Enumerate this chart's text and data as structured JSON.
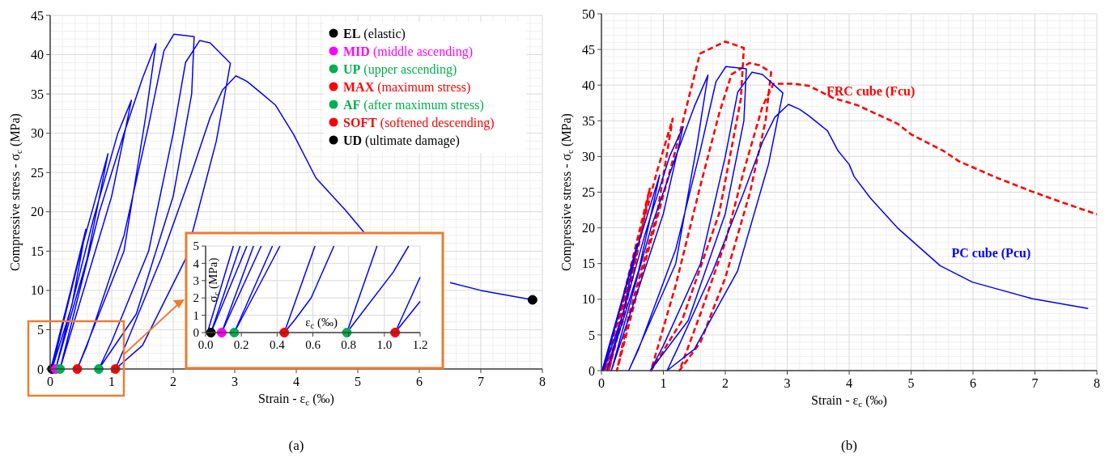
{
  "chart_data": [
    {
      "type": "line",
      "title": "(a)",
      "xlabel": "Strain - ε$_{c}$ (‰)",
      "ylabel": "Compressive stress - σ$_{c}$ (MPa)",
      "xlim": [
        0,
        8
      ],
      "ylim": [
        0,
        45
      ],
      "xticks": [
        0,
        1,
        2,
        3,
        4,
        5,
        6,
        7,
        8
      ],
      "yticks": [
        0,
        5,
        10,
        15,
        20,
        25,
        30,
        35,
        40,
        45
      ],
      "grid": true,
      "legend": "top right",
      "series": [
        {
          "color": "#0000ff",
          "line_style": "solid",
          "x": [
            0.01,
            0.35,
            0.58,
            0.35,
            0.03,
            0.5,
            0.94,
            0.6,
            0.09,
            0.7,
            1.1,
            1.32,
            1.0,
            0.16,
            0.8,
            1.2,
            1.5,
            1.72,
            1.55,
            1.2,
            0.44,
            0.6,
            1.2,
            1.6,
            1.85,
            2.01,
            2.34,
            2.3,
            2.0,
            1.4,
            0.79,
            1.0,
            1.6,
            2.0,
            2.2,
            2.43,
            2.6,
            2.93,
            2.7,
            2.2,
            1.5,
            1.06,
            1.25,
            1.8,
            2.3,
            2.6,
            2.8,
            3.02,
            3.2,
            3.4,
            3.66,
            3.96,
            4.32,
            4.8,
            5.1,
            5.5,
            6.0,
            6.5,
            7.0,
            7.84
          ],
          "values": [
            0,
            10.5,
            17.8,
            8,
            0,
            15,
            27.4,
            14,
            0,
            19,
            30,
            34.2,
            22,
            0,
            20,
            30,
            37,
            41.4,
            32,
            15,
            0,
            3,
            17,
            31,
            40.5,
            42.6,
            42.3,
            35,
            22,
            7,
            0,
            3.5,
            15,
            30,
            39,
            41.8,
            41.5,
            38.9,
            29,
            14,
            3,
            0,
            3.5,
            14,
            25,
            32,
            35.5,
            37.3,
            36.6,
            35.3,
            33.6,
            29.8,
            24.3,
            20.2,
            17.4,
            null,
            null,
            11,
            10,
            8.8
          ]
        },
        {
          "type": "scatter",
          "marker": "circle",
          "name": "EL (elastic)",
          "color": "#000000",
          "x": [
            0.03
          ],
          "values": [
            0
          ]
        },
        {
          "type": "scatter",
          "marker": "circle",
          "name": "MID (middle ascending)",
          "color": "#ff00ff",
          "x": [
            0.09
          ],
          "values": [
            0
          ]
        },
        {
          "type": "scatter",
          "marker": "circle",
          "name": "UP (upper ascending)",
          "color": "#00b050",
          "x": [
            0.16
          ],
          "values": [
            0
          ]
        },
        {
          "type": "scatter",
          "marker": "circle",
          "name": "MAX (maximum stress)",
          "color": "#ff0000",
          "x": [
            0.44
          ],
          "values": [
            0
          ]
        },
        {
          "type": "scatter",
          "marker": "circle",
          "name": "AF (after maximum stress)",
          "color": "#00b050",
          "x": [
            0.79
          ],
          "values": [
            0
          ]
        },
        {
          "type": "scatter",
          "marker": "circle",
          "name": "SOFT (softened descending)",
          "color": "#ff0000",
          "x": [
            1.06
          ],
          "values": [
            0
          ]
        },
        {
          "type": "scatter",
          "marker": "circle",
          "name": "UD (ultimate damage)",
          "color": "#000000",
          "x": [
            7.84
          ],
          "values": [
            8.8
          ]
        }
      ]
    },
    {
      "type": "line",
      "xlabel": "ε$_{c}$ (‰)",
      "ylabel": "σ$_{c}$ (MPa)",
      "xlim": [
        0,
        1.2
      ],
      "ylim": [
        0,
        5
      ],
      "xticks": [
        {
          "value": 0,
          "label": "0.0"
        },
        0.2,
        0.4,
        0.6,
        0.8,
        {
          "value": 1,
          "label": "1.0"
        },
        1.2
      ],
      "yticks": [
        0,
        1,
        2,
        3,
        4,
        5
      ],
      "grid": true,
      "series": [
        {
          "color": "#0000ff",
          "x": [
            0.01,
            0.155
          ],
          "values": [
            0,
            5
          ]
        },
        {
          "color": "#0000ff",
          "x": [
            0.03,
            0.193
          ],
          "values": [
            0,
            5
          ]
        },
        {
          "color": "#0000ff",
          "x": [
            0.03,
            0.231
          ],
          "values": [
            0,
            5
          ]
        },
        {
          "color": "#0000ff",
          "x": [
            0.09,
            0.268
          ],
          "values": [
            0,
            5
          ]
        },
        {
          "color": "#0000ff",
          "x": [
            0.09,
            0.311
          ],
          "values": [
            0,
            5
          ]
        },
        {
          "color": "#0000ff",
          "x": [
            0.16,
            0.374
          ],
          "values": [
            0,
            5
          ]
        },
        {
          "color": "#0000ff",
          "x": [
            0.16,
            0.416
          ],
          "values": [
            0,
            5
          ]
        },
        {
          "color": "#0000ff",
          "x": [
            0.44,
            0.612
          ],
          "values": [
            0,
            5
          ]
        },
        {
          "color": "#0000ff",
          "x": [
            0.44,
            0.5,
            0.59,
            0.718
          ],
          "values": [
            0,
            0.75,
            2,
            5
          ]
        },
        {
          "color": "#0000ff",
          "x": [
            0.79,
            0.959
          ],
          "values": [
            0,
            5
          ]
        },
        {
          "color": "#0000ff",
          "x": [
            0.79,
            1.05,
            1.136
          ],
          "values": [
            0,
            3.5,
            5
          ]
        },
        {
          "color": "#0000ff",
          "x": [
            1.06,
            1.2
          ],
          "values": [
            0,
            3.2
          ]
        },
        {
          "color": "#0000ff",
          "x": [
            1.06,
            1.2
          ],
          "values": [
            0,
            1.8
          ]
        },
        {
          "type": "scatter",
          "marker": "circle",
          "color": "#000000",
          "x": [
            0.03
          ],
          "values": [
            0
          ]
        },
        {
          "type": "scatter",
          "marker": "circle",
          "color": "#ff00ff",
          "x": [
            0.09
          ],
          "values": [
            0
          ]
        },
        {
          "type": "scatter",
          "marker": "circle",
          "color": "#00b050",
          "x": [
            0.16
          ],
          "values": [
            0
          ]
        },
        {
          "type": "scatter",
          "marker": "circle",
          "color": "#ff0000",
          "x": [
            0.44
          ],
          "values": [
            0
          ]
        },
        {
          "type": "scatter",
          "marker": "circle",
          "color": "#00b050",
          "x": [
            0.79
          ],
          "values": [
            0
          ]
        },
        {
          "type": "scatter",
          "marker": "circle",
          "color": "#ff0000",
          "x": [
            1.06
          ],
          "values": [
            0
          ]
        }
      ]
    },
    {
      "type": "line",
      "title": "(b)",
      "xlabel": "Strain - ε$_{c}$ (‰)",
      "ylabel": "Compressive stress - σ$_{c}$ (MPa)",
      "xlim": [
        0,
        8
      ],
      "ylim": [
        0,
        50
      ],
      "xticks": [
        0,
        1,
        2,
        3,
        4,
        5,
        6,
        7,
        8
      ],
      "yticks": [
        0,
        5,
        10,
        15,
        20,
        25,
        30,
        35,
        40,
        45,
        50
      ],
      "grid": true,
      "series": [
        {
          "name": "FRC cube (Fcu)",
          "color": "#ff0000",
          "line_style": "dashed",
          "x": [
            0.02,
            0.3,
            0.57,
            0.35,
            0.06,
            0.4,
            0.78,
            0.5,
            0.12,
            0.5,
            0.9,
            1.15,
            0.9,
            0.45,
            0.25,
            0.7,
            1.2,
            1.59,
            1.78,
            2.0,
            2.3,
            2.25,
            1.9,
            1.3,
            0.8,
            1.2,
            1.6,
            1.9,
            2.1,
            2.39,
            2.55,
            2.74,
            2.65,
            2.4,
            2.0,
            1.6,
            1.26,
            1.6,
            2.0,
            2.3,
            2.6,
            2.78,
            3.09,
            3.35,
            3.74,
            4.13,
            4.78,
            5.0,
            5.52,
            5.78,
            6.39,
            6.95,
            7.43,
            8.0
          ],
          "values": [
            0,
            8,
            16.8,
            7,
            0,
            12,
            25.5,
            13,
            0,
            15,
            28,
            35.3,
            22,
            8,
            0,
            15,
            31,
            44.4,
            45.2,
            46.1,
            45.2,
            38,
            22,
            7,
            0,
            12,
            26,
            36,
            41.5,
            43.1,
            42.8,
            41.8,
            35,
            25,
            13,
            4,
            0,
            8,
            18,
            28,
            37,
            40.2,
            40.2,
            39.9,
            38.2,
            37.2,
            34.6,
            33.1,
            30.8,
            29.3,
            27,
            25.1,
            23.6,
            21.9
          ]
        },
        {
          "name": "PC cube (Pcu)",
          "color": "#0000ff",
          "line_style": "solid",
          "x": [
            0.01,
            0.35,
            0.58,
            0.35,
            0.03,
            0.5,
            0.94,
            0.6,
            0.09,
            0.7,
            1.1,
            1.32,
            1.0,
            0.16,
            0.8,
            1.2,
            1.5,
            1.72,
            1.55,
            1.2,
            0.44,
            0.6,
            1.2,
            1.6,
            1.85,
            2.01,
            2.34,
            2.3,
            2.0,
            1.4,
            0.79,
            1.0,
            1.6,
            2.0,
            2.2,
            2.43,
            2.6,
            2.93,
            2.7,
            2.2,
            1.5,
            1.06,
            1.25,
            1.8,
            2.3,
            2.6,
            2.8,
            3.02,
            3.2,
            3.35,
            3.65,
            3.82,
            4.0,
            4.08,
            4.34,
            4.78,
            5.47,
            5.99,
            6.95,
            7.86
          ],
          "values": [
            0,
            10.5,
            17.8,
            8,
            0,
            15,
            27.4,
            14,
            0,
            19,
            30,
            34.2,
            22,
            0,
            20,
            30,
            37,
            41.4,
            32,
            15,
            0,
            3,
            17,
            31,
            40.5,
            42.6,
            42.3,
            35,
            22,
            7,
            0,
            3.5,
            15,
            30,
            39,
            41.8,
            41.5,
            38.9,
            29,
            14,
            3,
            0,
            3.5,
            14,
            25,
            32,
            35.5,
            37.3,
            36.6,
            35.7,
            33.6,
            30.8,
            28.9,
            27.2,
            24.2,
            20,
            14.7,
            12.4,
            10.1,
            8.7
          ]
        }
      ]
    }
  ]
}
